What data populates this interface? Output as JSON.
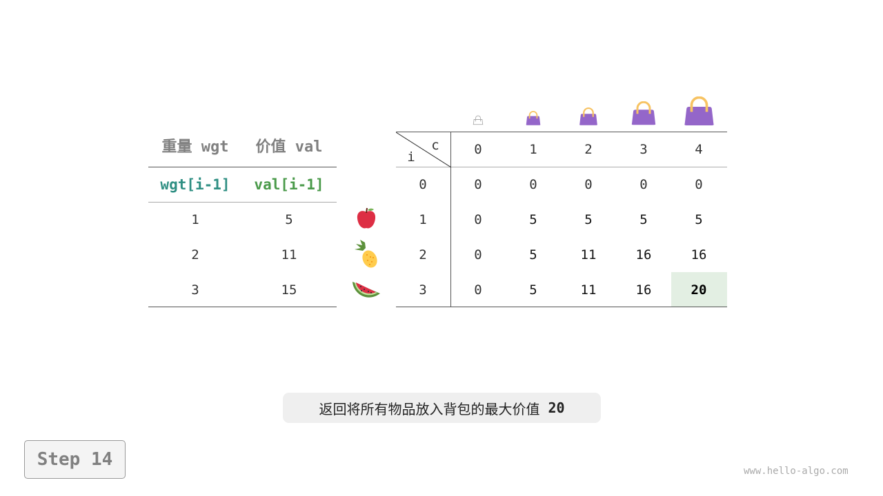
{
  "left_table": {
    "headers": [
      "重量 wgt",
      "价值 val"
    ],
    "subheaders": [
      "wgt[i-1]",
      "val[i-1]"
    ],
    "rows": [
      [
        "1",
        "5"
      ],
      [
        "2",
        "11"
      ],
      [
        "3",
        "15"
      ]
    ]
  },
  "items": [
    "apple-icon",
    "pineapple-icon",
    "watermelon-icon"
  ],
  "dp_table": {
    "corner_col": "c",
    "corner_row": "i",
    "col_headers": [
      "0",
      "1",
      "2",
      "3",
      "4"
    ],
    "row_headers": [
      "0",
      "1",
      "2",
      "3"
    ],
    "rows": [
      [
        "0",
        "0",
        "0",
        "0",
        "0"
      ],
      [
        "0",
        "5",
        "5",
        "5",
        "5"
      ],
      [
        "0",
        "5",
        "11",
        "16",
        "16"
      ],
      [
        "0",
        "5",
        "11",
        "16",
        "20"
      ]
    ],
    "highlight": {
      "row": 3,
      "col": 4,
      "color": "#e3efe3"
    }
  },
  "bag_color": "#9466c9",
  "handle_color": "#f7c363",
  "caption": {
    "text": "返回将所有物品放入背包的最大价值",
    "value": "20"
  },
  "step_label": "Step 14",
  "watermark": "www.hello-algo.com"
}
